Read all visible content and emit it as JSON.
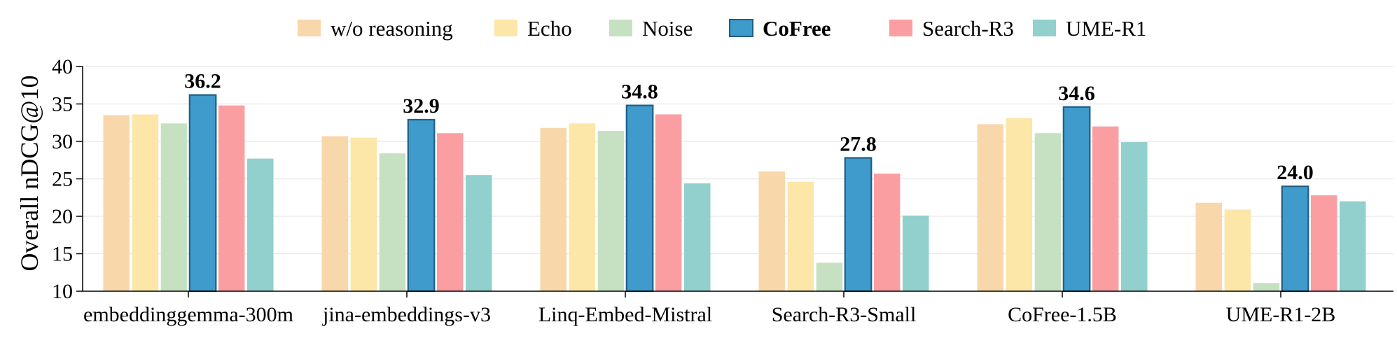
{
  "chart_data": {
    "type": "bar",
    "categories": [
      "embeddinggemma-300m",
      "jina-embeddings-v3",
      "Linq-Embed-Mistral",
      "Search-R3-Small",
      "CoFree-1.5B",
      "UME-R1-2B"
    ],
    "series": [
      {
        "name": "w/o reasoning",
        "color": "#f8d7aa",
        "values": [
          33.5,
          30.7,
          31.8,
          26.0,
          32.3,
          21.8
        ]
      },
      {
        "name": "Echo",
        "color": "#fce6a8",
        "values": [
          33.6,
          30.5,
          32.4,
          24.6,
          33.1,
          20.9
        ]
      },
      {
        "name": "Noise",
        "color": "#c6e1c1",
        "values": [
          32.4,
          28.4,
          31.4,
          13.8,
          31.1,
          11.1
        ]
      },
      {
        "name": "CoFree",
        "color": "#3e9bcb",
        "edge": "#1f5f86",
        "bold": true,
        "values": [
          36.2,
          32.9,
          34.8,
          27.8,
          34.6,
          24.0
        ]
      },
      {
        "name": "Search-R3",
        "color": "#fb9ea2",
        "values": [
          34.8,
          31.1,
          33.6,
          25.7,
          32.0,
          22.8
        ]
      },
      {
        "name": "UME-R1",
        "color": "#91d0cc",
        "values": [
          27.7,
          25.5,
          24.4,
          20.1,
          29.9,
          22.0
        ]
      }
    ],
    "highlight_labels": [
      "36.2",
      "32.9",
      "34.8",
      "27.8",
      "34.6",
      "24.0"
    ],
    "ylabel": "Overall nDCG@10",
    "xlabel": "",
    "ylim": [
      10,
      40
    ],
    "yticks": [
      10,
      15,
      20,
      25,
      30,
      35,
      40
    ],
    "grid": true,
    "legend_position": "top-center"
  }
}
